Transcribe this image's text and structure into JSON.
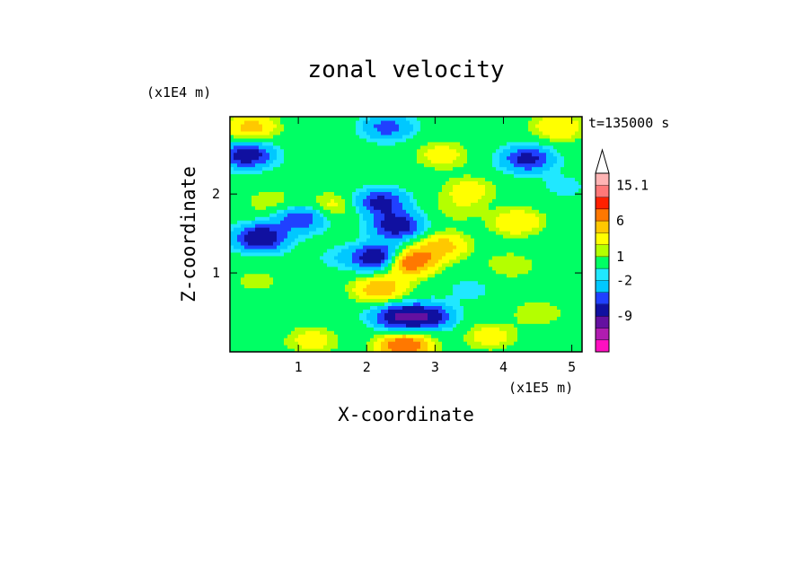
{
  "chart_data": {
    "type": "heatmap",
    "title": "zonal velocity",
    "xlabel": "X-coordinate",
    "ylabel": "Z-coordinate",
    "x_unit": "(x1E5 m)",
    "y_unit": "(x1E4 m)",
    "time_label": "t=135000 s",
    "xlim": [
      0,
      5.15
    ],
    "ylim": [
      0,
      2.98
    ],
    "x_ticks": [
      1,
      2,
      3,
      4,
      5
    ],
    "x_tick_labels": [
      "1",
      "2",
      "3",
      "4",
      "5"
    ],
    "y_ticks": [
      1,
      2
    ],
    "y_tick_labels": [
      "1",
      "2"
    ],
    "colorbar": {
      "levels": [
        -15,
        -12,
        -9,
        -6,
        -4,
        -2,
        -1,
        1,
        2,
        4,
        6,
        9,
        12,
        15.1
      ],
      "tick_labels": [
        "15.1",
        "6",
        "1",
        "-2",
        "-9"
      ],
      "tick_values": [
        15.1,
        6,
        1,
        -2,
        -9
      ],
      "colors": [
        "#ff10c0",
        "#b01cb0",
        "#6410a0",
        "#1010a0",
        "#2040ff",
        "#00c8ff",
        "#20e8ff",
        "#00ff64",
        "#b4ff00",
        "#ffff00",
        "#ffc800",
        "#ff7800",
        "#ff2000",
        "#ff7878",
        "#ffb4b4"
      ],
      "extend": "max"
    },
    "features": [
      {
        "x": 0.45,
        "z": 1.45,
        "u": -9
      },
      {
        "x": 0.25,
        "z": 2.5,
        "u": -8
      },
      {
        "x": 1.05,
        "z": 1.7,
        "u": -6
      },
      {
        "x": 2.2,
        "z": 1.2,
        "u": -10
      },
      {
        "x": 2.45,
        "z": 0.45,
        "u": -8
      },
      {
        "x": 2.45,
        "z": 1.6,
        "u": -8
      },
      {
        "x": 2.2,
        "z": 1.9,
        "u": -7
      },
      {
        "x": 2.9,
        "z": 0.45,
        "u": -7
      },
      {
        "x": 4.35,
        "z": 2.45,
        "u": -7
      },
      {
        "x": 2.3,
        "z": 2.85,
        "u": -5
      },
      {
        "x": 2.6,
        "z": 1.15,
        "u": 10
      },
      {
        "x": 2.55,
        "z": 0.08,
        "u": 9
      },
      {
        "x": 2.2,
        "z": 0.8,
        "u": 6
      },
      {
        "x": 3.1,
        "z": 1.35,
        "u": 5
      },
      {
        "x": 0.3,
        "z": 2.85,
        "u": 5
      },
      {
        "x": 4.8,
        "z": 2.85,
        "u": 4
      },
      {
        "x": 3.8,
        "z": 0.2,
        "u": 3
      },
      {
        "x": 1.2,
        "z": 0.15,
        "u": 3
      },
      {
        "x": 4.5,
        "z": 0.5,
        "u": 2
      },
      {
        "x": 1.5,
        "z": 1.85,
        "u": 3
      },
      {
        "x": 0.6,
        "z": 1.9,
        "u": 2
      },
      {
        "x": 3.5,
        "z": 2.05,
        "u": 3
      },
      {
        "x": 4.2,
        "z": 1.65,
        "u": 4
      },
      {
        "x": 4.1,
        "z": 1.1,
        "u": 2
      },
      {
        "x": 3.1,
        "z": 2.5,
        "u": 3
      },
      {
        "x": 0.4,
        "z": 0.9,
        "u": 1.5
      },
      {
        "x": 3.5,
        "z": 0.8,
        "u": -1.5
      },
      {
        "x": 4.9,
        "z": 2.1,
        "u": -1.5
      },
      {
        "x": 1.6,
        "z": 1.2,
        "u": -1.5
      },
      {
        "x": 3.3,
        "z": 1.8,
        "u": 1.5
      }
    ]
  }
}
